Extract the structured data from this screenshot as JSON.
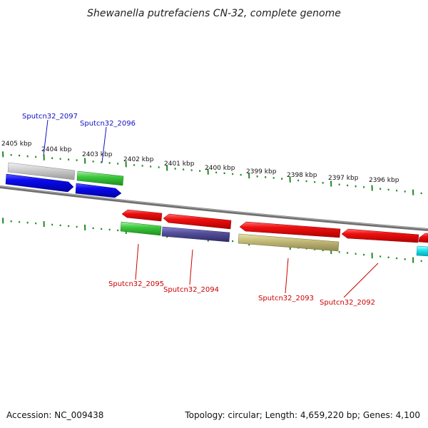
{
  "title": "Shewanella putrefaciens CN-32, complete genome",
  "footer": {
    "accession": "Accession: NC_009438",
    "summary": "Topology: circular; Length: 4,659,220 bp; Genes: 4,100"
  },
  "ticks": [
    "2405 kbp",
    "2404 kbp",
    "2403 kbp",
    "2402 kbp",
    "2401 kbp",
    "2400 kbp",
    "2399 kbp",
    "2398 kbp",
    "2397 kbp",
    "2396 kbp"
  ],
  "gene_labels": {
    "g2097": "Sputcn32_2097",
    "g2096": "Sputcn32_2096",
    "g2095": "Sputcn32_2095",
    "g2094": "Sputcn32_2094",
    "g2093": "Sputcn32_2093",
    "g2092": "Sputcn32_2092"
  },
  "colors": {
    "blue_label": "#1010c0",
    "red_label": "#cc0000",
    "tick_green": "#1f8a1f",
    "backbone": "#7a7a7a"
  }
}
